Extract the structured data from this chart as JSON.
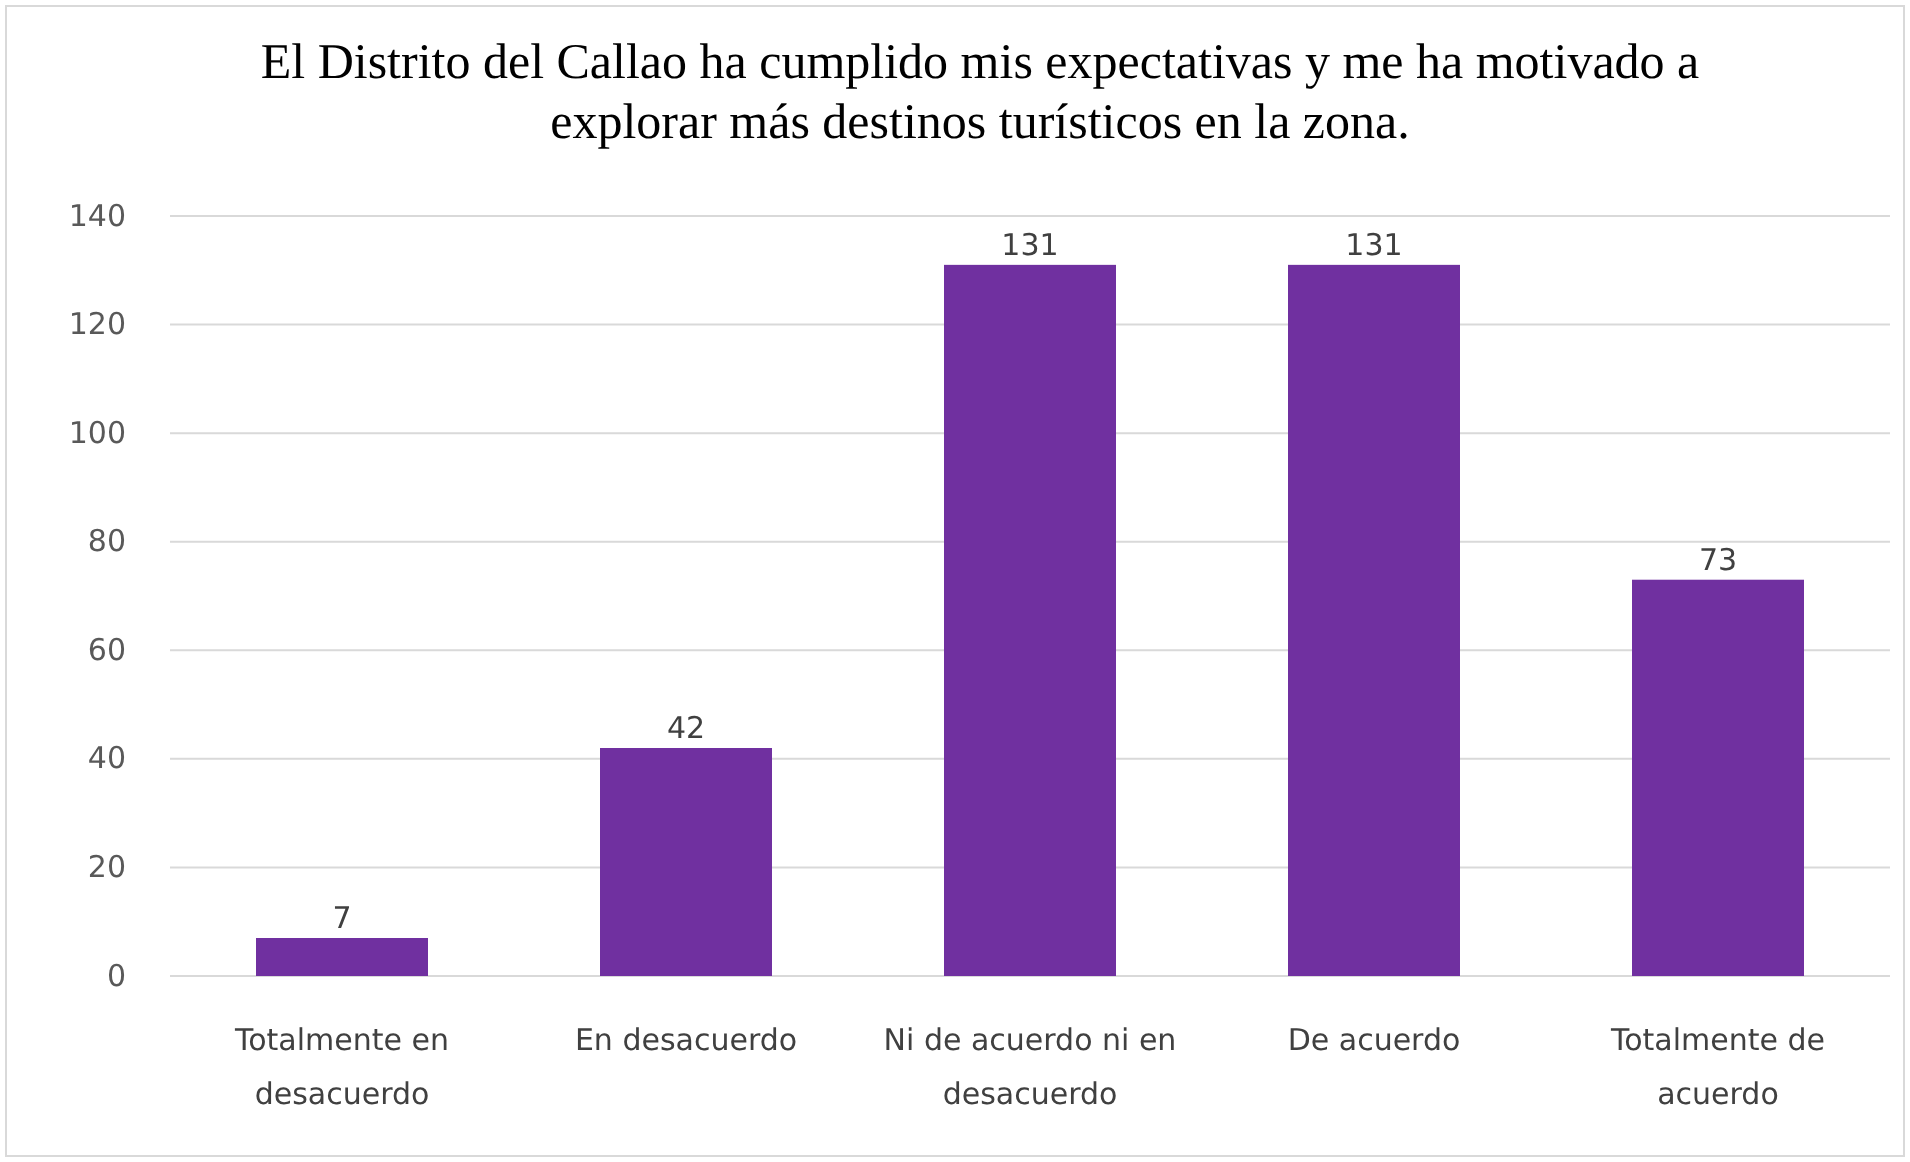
{
  "chart_data": {
    "type": "bar",
    "title": "El Distrito del Callao ha cumplido mis expectativas y me ha motivado a explorar más destinos turísticos en la zona.",
    "categories": [
      "Totalmente en desacuerdo",
      "En desacuerdo",
      "Ni de acuerdo ni en desacuerdo",
      "De acuerdo",
      "Totalmente de acuerdo"
    ],
    "values": [
      7,
      42,
      131,
      131,
      73
    ],
    "color": "#7030a0",
    "ylim": [
      0,
      140
    ],
    "yticks": [
      0,
      20,
      40,
      60,
      80,
      100,
      120,
      140
    ],
    "grid": "y",
    "data_labels": true
  }
}
